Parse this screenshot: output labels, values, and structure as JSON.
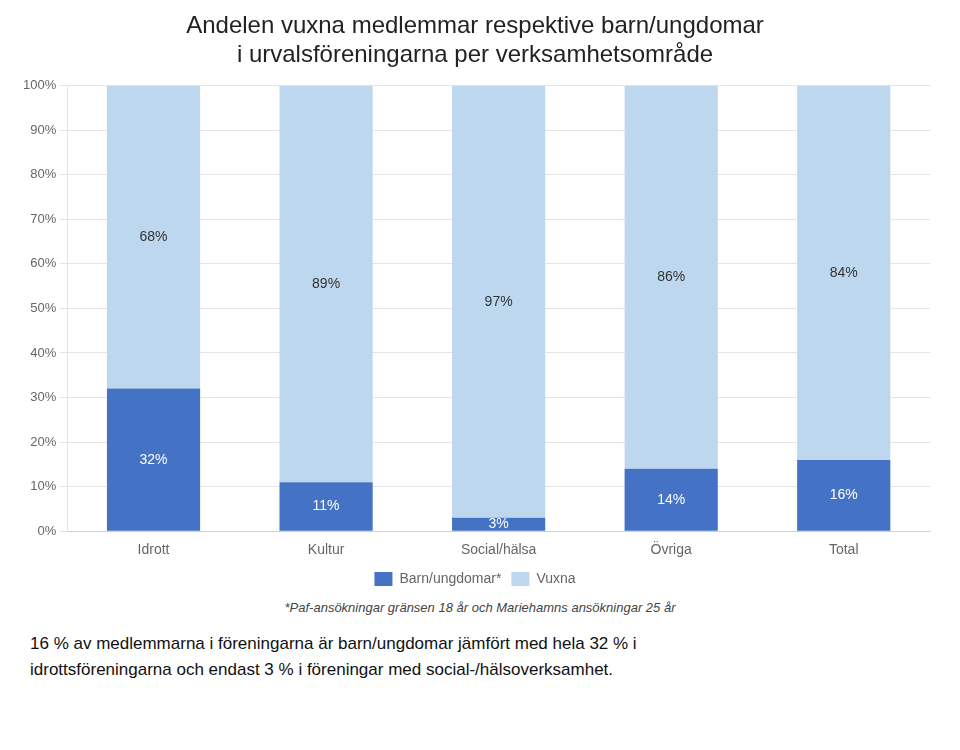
{
  "chart_data": {
    "type": "bar",
    "title": [
      "Andelen vuxna medlemmar respektive barn/ungdomar",
      "i urvalsföreningarna per verksamhetsområde"
    ],
    "categories": [
      "Idrott",
      "Kultur",
      "Social/hälsa",
      "Övriga",
      "Total"
    ],
    "series": [
      {
        "name": "Barn/ungdomar*",
        "color": "#4472C4",
        "values": [
          32,
          11,
          3,
          14,
          16
        ],
        "value_labels": [
          "32%",
          "11%",
          "3%",
          "14%",
          "16%"
        ]
      },
      {
        "name": "Vuxna",
        "color": "#BDD7EE",
        "values": [
          68,
          89,
          97,
          86,
          84
        ],
        "value_labels": [
          "68%",
          "89%",
          "97%",
          "86%",
          "84%"
        ]
      }
    ],
    "stacked": true,
    "data_labels": true,
    "ylim": [
      0,
      100
    ],
    "yticks": [
      {
        "value": 0,
        "label": "0%"
      },
      {
        "value": 10,
        "label": "10%"
      },
      {
        "value": 20,
        "label": "20%"
      },
      {
        "value": 30,
        "label": "30%"
      },
      {
        "value": 40,
        "label": "40%"
      },
      {
        "value": 50,
        "label": "50%"
      },
      {
        "value": 60,
        "label": "60%"
      },
      {
        "value": 70,
        "label": "70%"
      },
      {
        "value": 80,
        "label": "80%"
      },
      {
        "value": 90,
        "label": "90%"
      },
      {
        "value": 100,
        "label": "100%"
      }
    ],
    "grid": true,
    "legend": "bottom",
    "annotations": [
      "*Paf-ansökningar  gränsen 18 år och Mariehamns ansökningar 25 år",
      "16 % av medlemmarna i föreningarna är barn/ungdomar jämfört med hela 32 % i",
      "idrottsföreningarna och endast 3 % i föreningar med social-/hälsoverksamhet."
    ]
  }
}
